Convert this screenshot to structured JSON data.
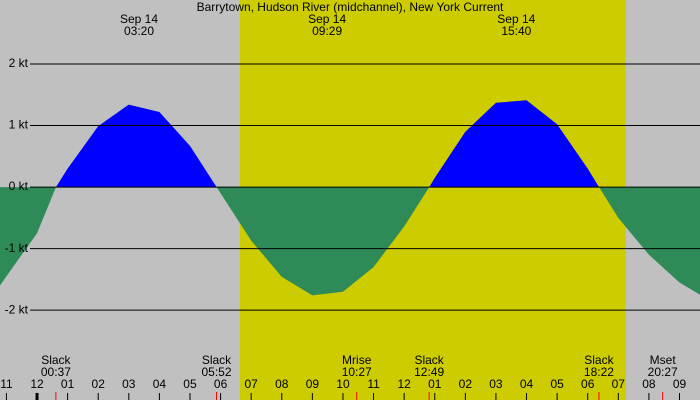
{
  "chart_data": {
    "type": "area",
    "title": "Barrytown, Hudson River (midchannel), New York Current",
    "x": [
      -1.21,
      -1,
      0,
      0.62,
      1,
      2,
      3,
      4,
      5,
      5.87,
      6,
      7,
      8,
      9,
      10,
      11,
      12,
      12.82,
      13,
      14,
      15,
      16,
      17,
      18,
      18.37,
      19,
      20,
      21,
      21.67
    ],
    "values": [
      -1.6,
      -1.45,
      -0.75,
      0,
      0.3,
      0.99,
      1.34,
      1.22,
      0.67,
      0,
      -0.1,
      -0.87,
      -1.46,
      -1.76,
      -1.7,
      -1.3,
      -0.64,
      0,
      0.15,
      0.9,
      1.37,
      1.41,
      1.02,
      0.3,
      0,
      -0.5,
      -1.1,
      -1.55,
      -1.75
    ],
    "colors": {
      "positive": "#0000ff",
      "negative": "#2e8b57",
      "night": "#c0c0c0",
      "day": "#cccc00"
    },
    "daylight": [
      6.63,
      19.25
    ],
    "xlim": [
      -1.21,
      21.67
    ],
    "ylim": [
      -3.46,
      3.04
    ],
    "yticks": [
      {
        "value": 2,
        "label": "2 kt"
      },
      {
        "value": 1,
        "label": "1 kt"
      },
      {
        "value": 0,
        "label": "0 kt"
      },
      {
        "value": -1,
        "label": "-1 kt"
      },
      {
        "value": -2,
        "label": "-2 kt"
      }
    ],
    "xticks": [
      {
        "value": -1,
        "label": "11"
      },
      {
        "value": 0,
        "label": "12"
      },
      {
        "value": 1,
        "label": "01"
      },
      {
        "value": 2,
        "label": "02"
      },
      {
        "value": 3,
        "label": "03"
      },
      {
        "value": 4,
        "label": "04"
      },
      {
        "value": 5,
        "label": "05"
      },
      {
        "value": 6,
        "label": "06"
      },
      {
        "value": 7,
        "label": "07"
      },
      {
        "value": 8,
        "label": "08"
      },
      {
        "value": 9,
        "label": "09"
      },
      {
        "value": 10,
        "label": "10"
      },
      {
        "value": 11,
        "label": "11"
      },
      {
        "value": 12,
        "label": "12"
      },
      {
        "value": 13,
        "label": "01"
      },
      {
        "value": 14,
        "label": "02"
      },
      {
        "value": 15,
        "label": "03"
      },
      {
        "value": 16,
        "label": "04"
      },
      {
        "value": 17,
        "label": "05"
      },
      {
        "value": 18,
        "label": "06"
      },
      {
        "value": 19,
        "label": "07"
      },
      {
        "value": 20,
        "label": "08"
      },
      {
        "value": 21,
        "label": "09"
      }
    ],
    "peaks": [
      {
        "date": "Sep 14",
        "time": "03:20"
      },
      {
        "date": "Sep 14",
        "time": "09:29"
      },
      {
        "date": "Sep 14",
        "time": "15:40"
      }
    ],
    "events": [
      {
        "label": "Slack",
        "time": "00:37"
      },
      {
        "label": "Slack",
        "time": "05:52"
      },
      {
        "label": "Mrise",
        "time": "10:27"
      },
      {
        "label": "Slack",
        "time": "12:49"
      },
      {
        "label": "Slack",
        "time": "18:22"
      },
      {
        "label": "Mset",
        "time": "20:27"
      }
    ]
  }
}
